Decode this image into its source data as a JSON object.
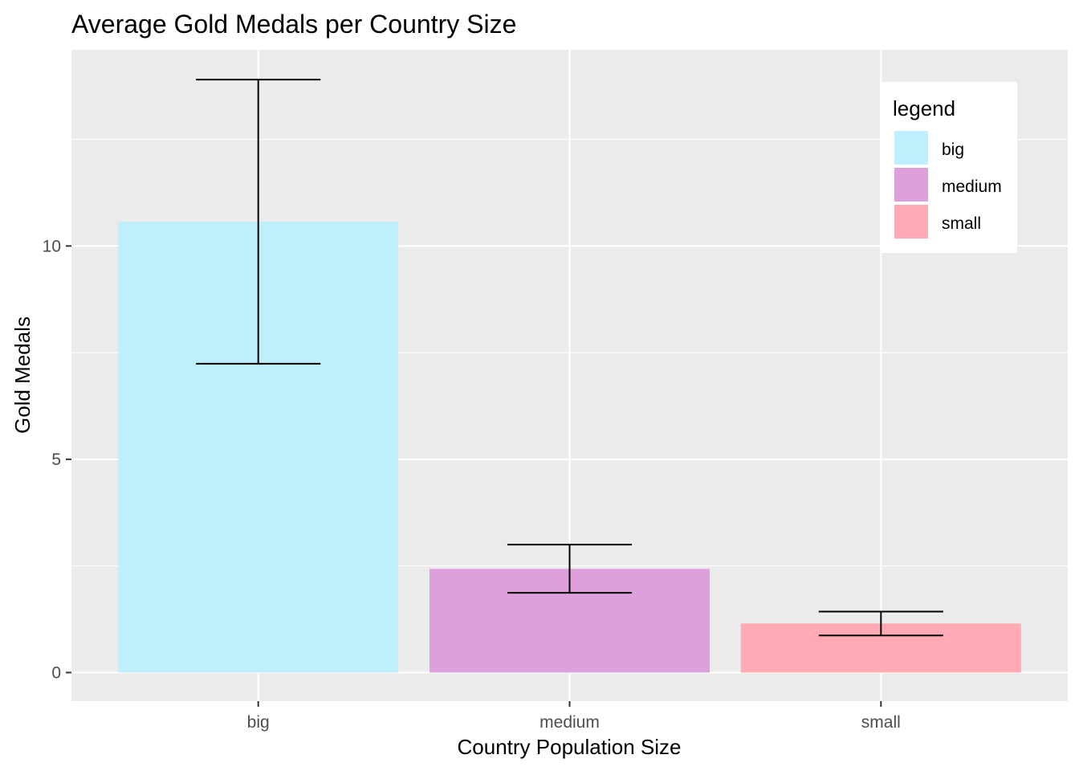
{
  "chart_data": {
    "type": "bar",
    "title": "Average Gold Medals per Country Size",
    "xlabel": "Country Population Size",
    "ylabel": "Gold Medals",
    "categories": [
      "big",
      "medium",
      "small"
    ],
    "values": [
      10.57,
      2.43,
      1.15
    ],
    "error_bars": [
      {
        "low": 7.24,
        "high": 13.9
      },
      {
        "low": 1.87,
        "high": 3.0
      },
      {
        "low": 0.87,
        "high": 1.43
      }
    ],
    "colors": [
      "#bfeefc",
      "#dda0dd",
      "#ffaab5"
    ],
    "yticks": [
      0,
      5,
      10
    ],
    "ylim": [
      -0.67,
      14.6
    ],
    "grid": true,
    "background": "#ebebeb",
    "legend": {
      "title": "legend",
      "position": "top-right",
      "entries": [
        "big",
        "medium",
        "small"
      ]
    }
  }
}
